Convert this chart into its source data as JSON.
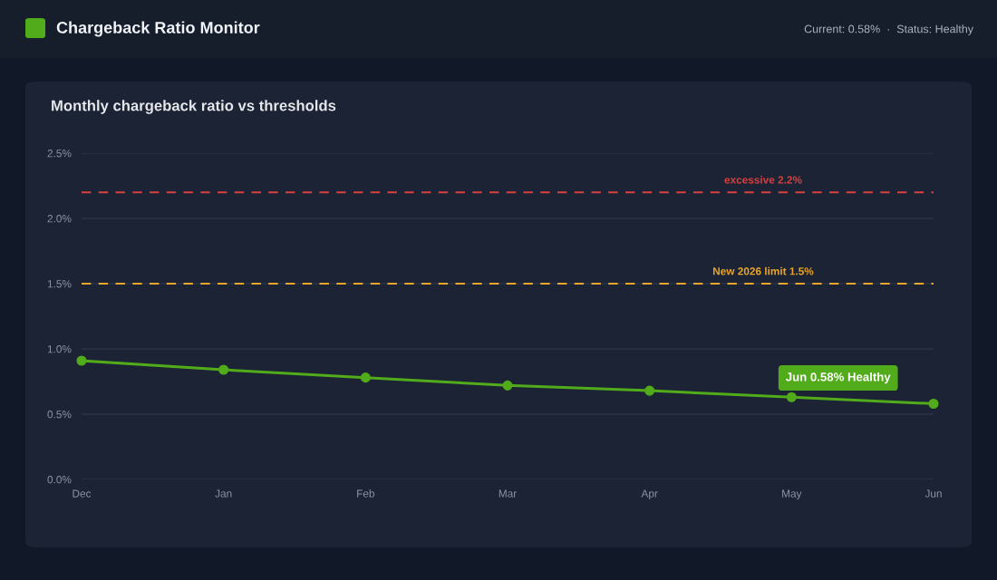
{
  "chart_data": {
    "type": "line",
    "title": "Chargeback Ratio Monitor",
    "subtitle": "Monthly chargeback ratio vs thresholds",
    "categories": [
      "Dec",
      "Jan",
      "Feb",
      "Mar",
      "Apr",
      "May",
      "Jun"
    ],
    "series": [
      {
        "color": "#52ab1a",
        "values": [
          0.91,
          0.84,
          0.78,
          0.72,
          0.68,
          0.63,
          0.58
        ]
      }
    ],
    "ylim": [
      0,
      2.5
    ],
    "yticks": [
      {
        "value": 0,
        "label": "0.0%"
      },
      {
        "value": 0.5,
        "label": "0.5%"
      },
      {
        "value": 1.0,
        "label": "1.0%"
      },
      {
        "value": 1.5,
        "label": "1.5%"
      },
      {
        "value": 2.0,
        "label": "2.0%"
      },
      {
        "value": 2.5,
        "label": "2.5%"
      }
    ],
    "ref_lines": [
      {
        "axis": "y",
        "value": 2.2,
        "label": "excessive 2.2%",
        "color": "#d9403f",
        "line_style": "dashed"
      },
      {
        "axis": "y",
        "value": 1.5,
        "label": "New 2026 limit 1.5%",
        "color": "#e9a62a",
        "line_style": "dashed"
      }
    ],
    "annotations": [
      "Current: 0.58%  ·  Status: Healthy",
      "Jun 0.58% Healthy"
    ],
    "grid": "y",
    "marker": "circle",
    "line_style": "solid"
  }
}
